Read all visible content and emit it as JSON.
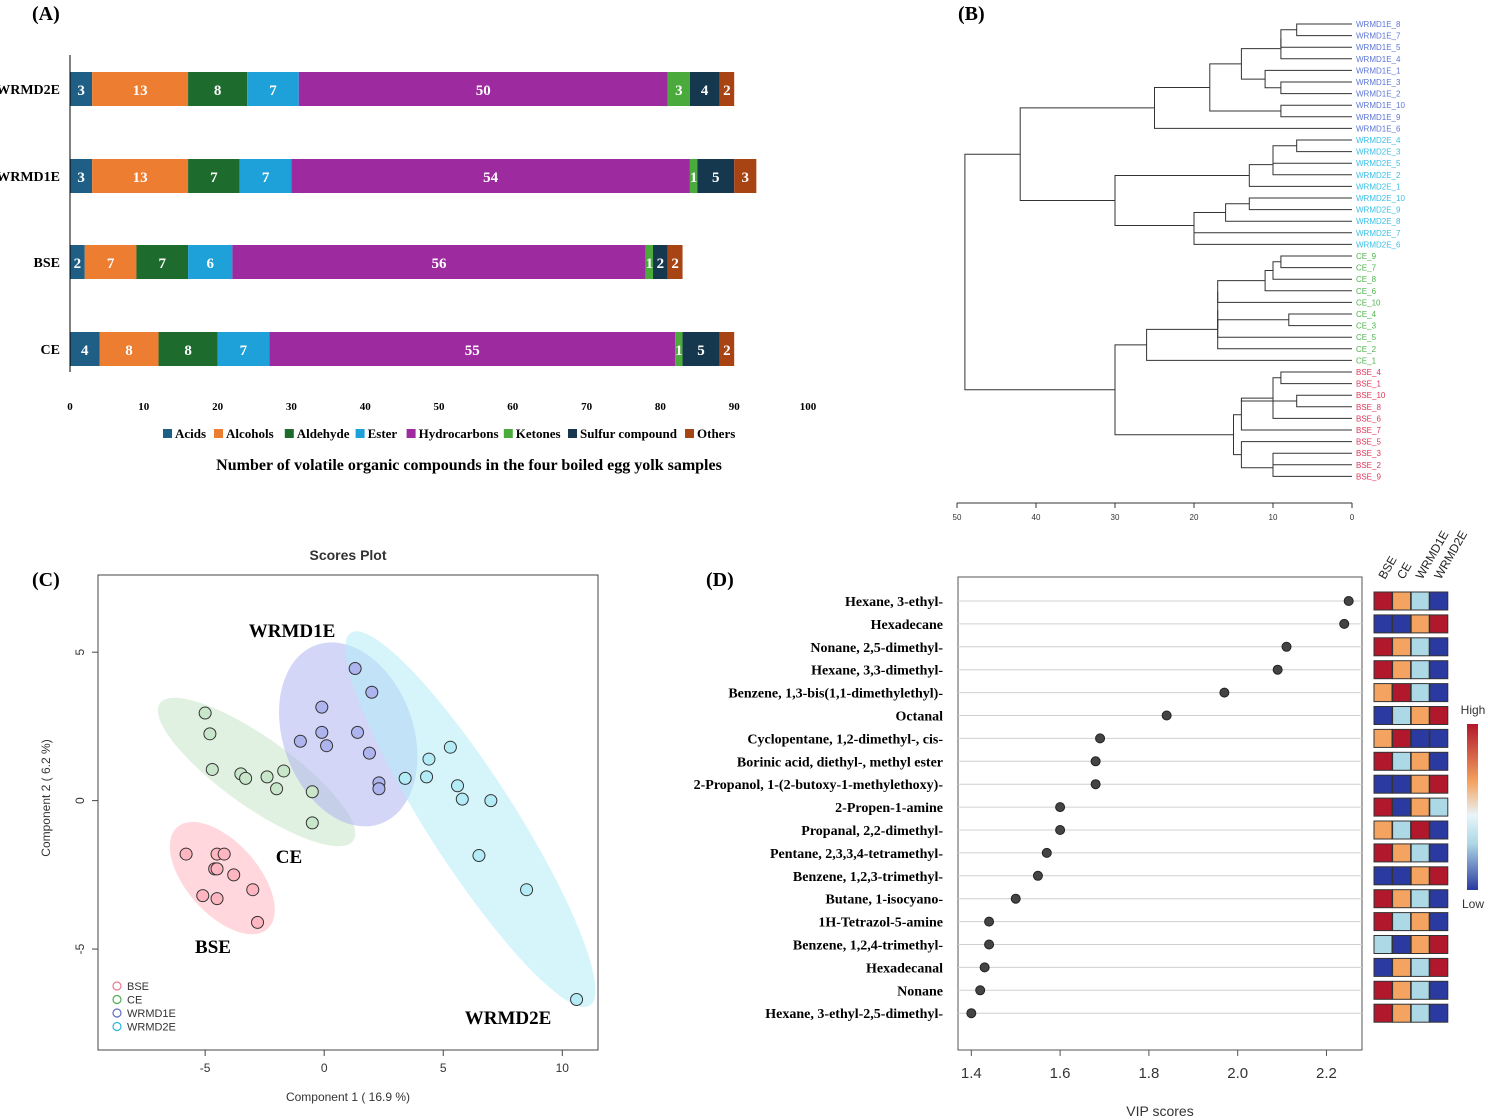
{
  "panels": {
    "a": "(A)",
    "b": "(B)",
    "c": "(C)",
    "d": "(D)"
  },
  "chart_data": [
    {
      "type": "bar",
      "orientation": "horizontal-stacked",
      "panel": "(A)",
      "title": "Number of volatile organic compounds in the four boiled egg yolk samples",
      "categories": [
        "WRMD2E",
        "WRMD1E",
        "BSE",
        "CE"
      ],
      "series": [
        {
          "name": "Acids",
          "color": "#1f5f85",
          "values": [
            3,
            3,
            2,
            4
          ]
        },
        {
          "name": "Alcohols",
          "color": "#ed7d31",
          "values": [
            13,
            13,
            7,
            8
          ]
        },
        {
          "name": "Aldehyde",
          "color": "#1e6b2e",
          "values": [
            8,
            7,
            7,
            8
          ]
        },
        {
          "name": "Ester",
          "color": "#1ea1d9",
          "values": [
            7,
            7,
            6,
            7
          ]
        },
        {
          "name": "Hydrocarbons",
          "color": "#9e2aa0",
          "values": [
            50,
            54,
            56,
            55
          ]
        },
        {
          "name": "Ketones",
          "color": "#4aaa3c",
          "values": [
            3,
            1,
            1,
            1
          ]
        },
        {
          "name": "Sulfur compound",
          "color": "#15384f",
          "values": [
            4,
            5,
            2,
            5
          ]
        },
        {
          "name": "Others",
          "color": "#a84414",
          "values": [
            2,
            3,
            2,
            2
          ]
        }
      ],
      "xlim": [
        0,
        100
      ],
      "xticks": [
        "0",
        "10",
        "20",
        "30",
        "40",
        "50",
        "60",
        "70",
        "80",
        "90",
        "100"
      ],
      "legend": "bottom"
    },
    {
      "type": "dendrogram",
      "panel": "(B)",
      "leaves": [
        {
          "label": "WRMD1E_8",
          "color": "#5d76d6"
        },
        {
          "label": "WRMD1E_7",
          "color": "#5d76d6"
        },
        {
          "label": "WRMD1E_5",
          "color": "#5d76d6"
        },
        {
          "label": "WRMD1E_4",
          "color": "#5d76d6"
        },
        {
          "label": "WRMD1E_1",
          "color": "#5d76d6"
        },
        {
          "label": "WRMD1E_3",
          "color": "#5d76d6"
        },
        {
          "label": "WRMD1E_2",
          "color": "#5d76d6"
        },
        {
          "label": "WRMD1E_10",
          "color": "#5d76d6"
        },
        {
          "label": "WRMD1E_9",
          "color": "#5d76d6"
        },
        {
          "label": "WRMD1E_6",
          "color": "#5d76d6"
        },
        {
          "label": "WRMD2E_4",
          "color": "#3cc0e6"
        },
        {
          "label": "WRMD2E_3",
          "color": "#3cc0e6"
        },
        {
          "label": "WRMD2E_5",
          "color": "#3cc0e6"
        },
        {
          "label": "WRMD2E_2",
          "color": "#3cc0e6"
        },
        {
          "label": "WRMD2E_1",
          "color": "#3cc0e6"
        },
        {
          "label": "WRMD2E_10",
          "color": "#3cc0e6"
        },
        {
          "label": "WRMD2E_9",
          "color": "#3cc0e6"
        },
        {
          "label": "WRMD2E_8",
          "color": "#3cc0e6"
        },
        {
          "label": "WRMD2E_7",
          "color": "#3cc0e6"
        },
        {
          "label": "WRMD2E_6",
          "color": "#3cc0e6"
        },
        {
          "label": "CE_9",
          "color": "#4db34d"
        },
        {
          "label": "CE_7",
          "color": "#4db34d"
        },
        {
          "label": "CE_8",
          "color": "#4db34d"
        },
        {
          "label": "CE_6",
          "color": "#4db34d"
        },
        {
          "label": "CE_10",
          "color": "#4db34d"
        },
        {
          "label": "CE_4",
          "color": "#4db34d"
        },
        {
          "label": "CE_3",
          "color": "#4db34d"
        },
        {
          "label": "CE_5",
          "color": "#4db34d"
        },
        {
          "label": "CE_2",
          "color": "#4db34d"
        },
        {
          "label": "CE_1",
          "color": "#4db34d"
        },
        {
          "label": "BSE_4",
          "color": "#e0355a"
        },
        {
          "label": "BSE_1",
          "color": "#e0355a"
        },
        {
          "label": "BSE_10",
          "color": "#e0355a"
        },
        {
          "label": "BSE_8",
          "color": "#e0355a"
        },
        {
          "label": "BSE_6",
          "color": "#e0355a"
        },
        {
          "label": "BSE_7",
          "color": "#e0355a"
        },
        {
          "label": "BSE_5",
          "color": "#e0355a"
        },
        {
          "label": "BSE_3",
          "color": "#e0355a"
        },
        {
          "label": "BSE_2",
          "color": "#e0355a"
        },
        {
          "label": "BSE_9",
          "color": "#e0355a"
        }
      ],
      "merges": [
        [
          0,
          1,
          7
        ],
        [
          -1,
          2,
          9
        ],
        [
          -2,
          3,
          9
        ],
        [
          5,
          6,
          9
        ],
        [
          4,
          -4,
          11
        ],
        [
          -3,
          -5,
          14
        ],
        [
          7,
          8,
          9
        ],
        [
          -6,
          -7,
          18
        ],
        [
          -8,
          9,
          25
        ],
        [
          10,
          11,
          7
        ],
        [
          -10,
          12,
          10
        ],
        [
          -11,
          13,
          10
        ],
        [
          -12,
          14,
          13
        ],
        [
          15,
          16,
          13
        ],
        [
          -14,
          17,
          16
        ],
        [
          18,
          19,
          20
        ],
        [
          -15,
          -16,
          20
        ],
        [
          -13,
          -17,
          30
        ],
        [
          -9,
          -18,
          42
        ],
        [
          20,
          21,
          9
        ],
        [
          -20,
          22,
          10
        ],
        [
          -21,
          23,
          11
        ],
        [
          -22,
          24,
          17
        ],
        [
          25,
          26,
          8
        ],
        [
          -24,
          27,
          17
        ],
        [
          -23,
          -25,
          17
        ],
        [
          -26,
          28,
          17
        ],
        [
          -27,
          29,
          26
        ],
        [
          30,
          31,
          9
        ],
        [
          32,
          33,
          7
        ],
        [
          -29,
          34,
          10
        ],
        [
          -30,
          -31,
          14
        ],
        [
          -32,
          35,
          14
        ],
        [
          37,
          38,
          10
        ],
        [
          -34,
          39,
          10
        ],
        [
          36,
          -35,
          14
        ],
        [
          -33,
          -36,
          15
        ],
        [
          -37,
          -28,
          30
        ],
        [
          -38,
          -19,
          49
        ]
      ],
      "xlim": [
        50,
        0
      ],
      "xticks": [
        "50",
        "40",
        "30",
        "20",
        "10",
        "0"
      ]
    },
    {
      "type": "scatter",
      "panel": "(C)",
      "title": "Scores Plot",
      "xlabel": "Component 1 ( 16.9 %)",
      "ylabel": "Component 2 ( 6.2 %)",
      "xlim": [
        -9.5,
        11.5
      ],
      "ylim": [
        -8.4,
        7.6
      ],
      "xticks": [
        "-5",
        "0",
        "5",
        "10"
      ],
      "yticks": [
        "5",
        "0",
        "-5"
      ],
      "series": [
        {
          "name": "BSE",
          "color": "#e87a90",
          "fill": "#ffb6c1",
          "points": [
            [
              -5.8,
              -1.8
            ],
            [
              -4.5,
              -1.8
            ],
            [
              -4.2,
              -1.8
            ],
            [
              -4.6,
              -2.3
            ],
            [
              -4.5,
              -2.3
            ],
            [
              -3.8,
              -2.5
            ],
            [
              -5.1,
              -3.2
            ],
            [
              -4.5,
              -3.3
            ],
            [
              -3.0,
              -3.0
            ],
            [
              -2.8,
              -4.1
            ]
          ]
        },
        {
          "name": "CE",
          "color": "#4caf50",
          "fill": "#c8e6c9",
          "points": [
            [
              -5.0,
              2.95
            ],
            [
              -4.8,
              2.25
            ],
            [
              -4.7,
              1.05
            ],
            [
              -3.5,
              0.9
            ],
            [
              -3.3,
              0.75
            ],
            [
              -2.4,
              0.8
            ],
            [
              -1.7,
              1.0
            ],
            [
              -2.0,
              0.4
            ],
            [
              -0.5,
              0.3
            ],
            [
              -0.5,
              -0.75
            ]
          ]
        },
        {
          "name": "WRMD1E",
          "color": "#5c6bc0",
          "fill": "#aeb4ee",
          "points": [
            [
              1.3,
              4.45
            ],
            [
              2.0,
              3.65
            ],
            [
              -0.1,
              3.15
            ],
            [
              -1.0,
              2.0
            ],
            [
              -0.1,
              2.3
            ],
            [
              0.1,
              1.85
            ],
            [
              1.4,
              2.3
            ],
            [
              1.9,
              1.6
            ],
            [
              2.3,
              0.6
            ],
            [
              2.3,
              0.4
            ]
          ]
        },
        {
          "name": "WRMD2E",
          "color": "#29b6d9",
          "fill": "#b3ecf7",
          "points": [
            [
              5.3,
              1.8
            ],
            [
              4.4,
              1.4
            ],
            [
              3.4,
              0.75
            ],
            [
              4.3,
              0.8
            ],
            [
              5.6,
              0.5
            ],
            [
              5.8,
              0.05
            ],
            [
              7.0,
              0.0
            ],
            [
              6.5,
              -1.85
            ],
            [
              8.5,
              -3.0
            ],
            [
              10.6,
              -6.7
            ]
          ]
        }
      ],
      "group_labels": [
        "WRMD1E",
        "CE",
        "BSE",
        "WRMD2E"
      ],
      "legend": "bottom-left"
    },
    {
      "type": "scatter",
      "subtype": "vip-dotplot-with-heatmap",
      "panel": "(D)",
      "xlabel": "VIP scores",
      "xlim": [
        1.37,
        2.28
      ],
      "xticks": [
        "1.4",
        "1.6",
        "1.8",
        "2.0",
        "2.2"
      ],
      "groups": [
        "BSE",
        "CE",
        "WRMD1E",
        "WRMD2E"
      ],
      "heat_colors": {
        "H": "#b2182b",
        "M": "#f4a460",
        "L": "#add8e6",
        "D": "#2b3aa0"
      },
      "colorbar_high": "High",
      "colorbar_low": "Low",
      "features": [
        {
          "name": "Hexane, 3-ethyl-",
          "vip": 2.25,
          "heat": [
            "H",
            "M",
            "L",
            "D"
          ]
        },
        {
          "name": "Hexadecane",
          "vip": 2.24,
          "heat": [
            "D",
            "D",
            "M",
            "H"
          ]
        },
        {
          "name": "Nonane, 2,5-dimethyl-",
          "vip": 2.11,
          "heat": [
            "H",
            "M",
            "L",
            "D"
          ]
        },
        {
          "name": "Hexane, 3,3-dimethyl-",
          "vip": 2.09,
          "heat": [
            "H",
            "M",
            "L",
            "D"
          ]
        },
        {
          "name": "Benzene, 1,3-bis(1,1-dimethylethyl)-",
          "vip": 1.97,
          "heat": [
            "M",
            "H",
            "L",
            "D"
          ]
        },
        {
          "name": "Octanal",
          "vip": 1.84,
          "heat": [
            "D",
            "L",
            "M",
            "H"
          ]
        },
        {
          "name": "Cyclopentane, 1,2-dimethyl-, cis-",
          "vip": 1.69,
          "heat": [
            "M",
            "H",
            "D",
            "D"
          ]
        },
        {
          "name": "Borinic acid, diethyl-, methyl ester",
          "vip": 1.68,
          "heat": [
            "H",
            "L",
            "M",
            "D"
          ]
        },
        {
          "name": "2-Propanol, 1-(2-butoxy-1-methylethoxy)-",
          "vip": 1.68,
          "heat": [
            "D",
            "D",
            "M",
            "H"
          ]
        },
        {
          "name": "2-Propen-1-amine",
          "vip": 1.6,
          "heat": [
            "H",
            "D",
            "M",
            "L"
          ]
        },
        {
          "name": "Propanal, 2,2-dimethyl-",
          "vip": 1.6,
          "heat": [
            "M",
            "L",
            "H",
            "D"
          ]
        },
        {
          "name": "Pentane, 2,3,3,4-tetramethyl-",
          "vip": 1.57,
          "heat": [
            "H",
            "M",
            "L",
            "D"
          ]
        },
        {
          "name": "Benzene, 1,2,3-trimethyl-",
          "vip": 1.55,
          "heat": [
            "D",
            "D",
            "M",
            "H"
          ]
        },
        {
          "name": "Butane, 1-isocyano-",
          "vip": 1.5,
          "heat": [
            "H",
            "M",
            "L",
            "D"
          ]
        },
        {
          "name": "1H-Tetrazol-5-amine",
          "vip": 1.44,
          "heat": [
            "H",
            "L",
            "M",
            "D"
          ]
        },
        {
          "name": "Benzene, 1,2,4-trimethyl-",
          "vip": 1.44,
          "heat": [
            "L",
            "D",
            "M",
            "H"
          ]
        },
        {
          "name": "Hexadecanal",
          "vip": 1.43,
          "heat": [
            "D",
            "M",
            "L",
            "H"
          ]
        },
        {
          "name": "Nonane",
          "vip": 1.42,
          "heat": [
            "H",
            "M",
            "L",
            "D"
          ]
        },
        {
          "name": "Hexane, 3-ethyl-2,5-dimethyl-",
          "vip": 1.4,
          "heat": [
            "H",
            "M",
            "L",
            "D"
          ]
        }
      ]
    }
  ]
}
